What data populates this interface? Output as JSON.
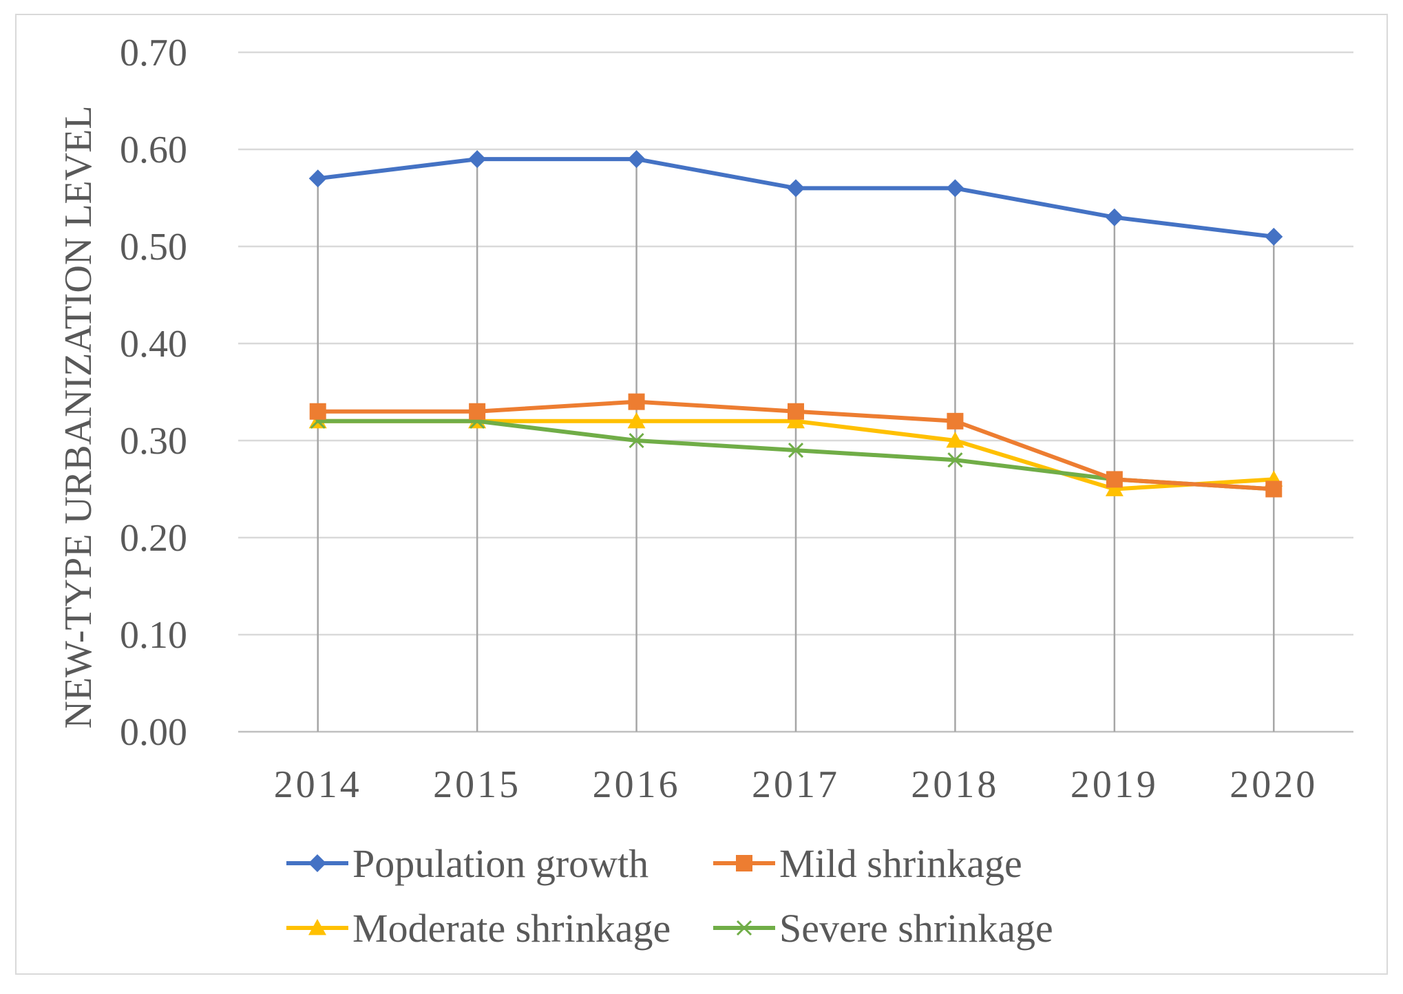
{
  "chart_data": {
    "type": "line",
    "title": "",
    "xlabel": "",
    "ylabel": "NEW-TYPE URBANIZATION LEVEL",
    "ylim": [
      0,
      0.7
    ],
    "yticks": [
      "0.00",
      "0.10",
      "0.20",
      "0.30",
      "0.40",
      "0.50",
      "0.60",
      "0.70"
    ],
    "ytick_values": [
      0,
      0.1,
      0.2,
      0.3,
      0.4,
      0.5,
      0.6,
      0.7
    ],
    "categories": [
      "2014",
      "2015",
      "2016",
      "2017",
      "2018",
      "2019",
      "2020"
    ],
    "grid": true,
    "drop_lines": true,
    "legend_position": "bottom",
    "series": [
      {
        "name": "Population growth",
        "color": "#4472c4",
        "marker": "diamond",
        "values": [
          0.57,
          0.59,
          0.59,
          0.56,
          0.56,
          0.53,
          0.51
        ]
      },
      {
        "name": "Mild shrinkage",
        "color": "#ed7d31",
        "marker": "square",
        "values": [
          0.33,
          0.33,
          0.34,
          0.33,
          0.32,
          0.26,
          0.25
        ]
      },
      {
        "name": "Moderate shrinkage",
        "color": "#ffc000",
        "marker": "triangle",
        "values": [
          0.32,
          0.32,
          0.32,
          0.32,
          0.3,
          0.25,
          0.26
        ]
      },
      {
        "name": "Severe shrinkage",
        "color": "#70ad47",
        "marker": "x",
        "values": [
          0.32,
          0.32,
          0.3,
          0.29,
          0.28,
          0.26,
          0.25
        ]
      }
    ]
  }
}
